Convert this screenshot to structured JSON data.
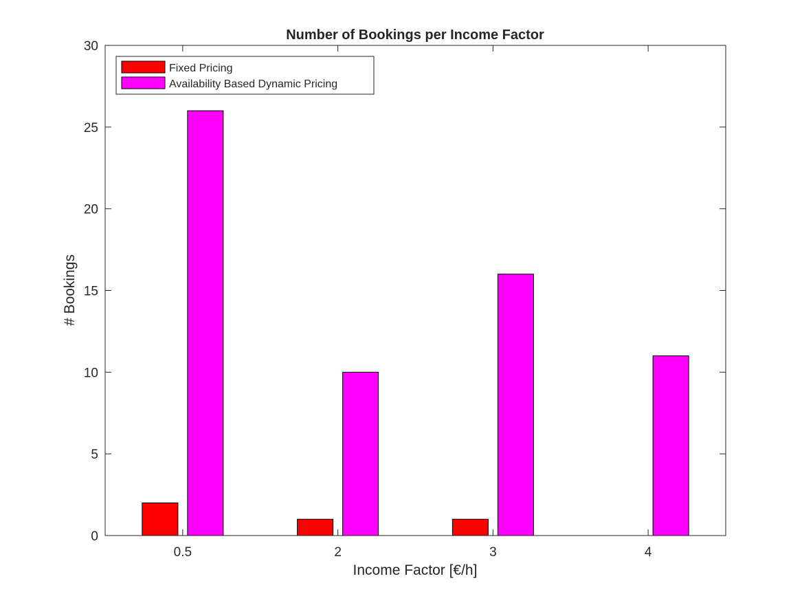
{
  "chart_data": {
    "type": "bar",
    "title": "Number of Bookings per Income Factor",
    "xlabel": "Income Factor [€/h]",
    "ylabel": "# Bookings",
    "categories": [
      "0.5",
      "2",
      "3",
      "4"
    ],
    "series": [
      {
        "name": "Fixed Pricing",
        "color": "#ff0000",
        "values": [
          2,
          1,
          1,
          0
        ]
      },
      {
        "name": "Availability Based Dynamic Pricing",
        "color": "#ff00ff",
        "values": [
          26,
          10,
          16,
          11
        ]
      }
    ],
    "ylim": [
      0,
      30
    ],
    "yticks": [
      0,
      5,
      10,
      15,
      20,
      25,
      30
    ],
    "grid": false,
    "legend_position": "top-left"
  }
}
